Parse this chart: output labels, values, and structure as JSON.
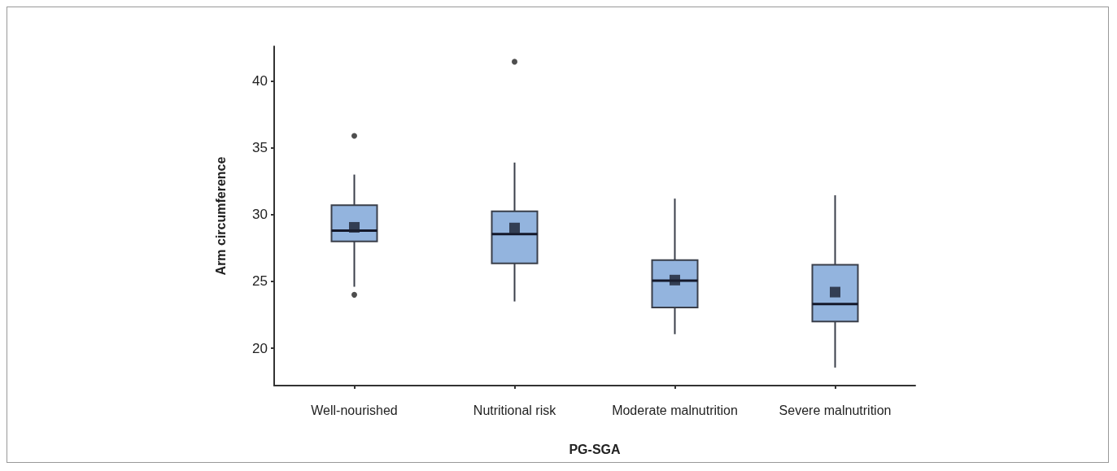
{
  "chart_data": {
    "type": "box",
    "xlabel": "PG-SGA",
    "ylabel": "Arm circumference",
    "categories": [
      "Well-nourished",
      "Nutritional risk",
      "Moderate malnutrition",
      "Severe malnutrition"
    ],
    "color": "#93b4de",
    "marker": "square",
    "boxes": [
      {
        "low": 24.6,
        "q1": 28.0,
        "median": 28.8,
        "q3": 30.7,
        "high": 33.0,
        "mean": 29.05,
        "outliers": [
          35.9,
          24.0
        ]
      },
      {
        "low": 23.5,
        "q1": 26.35,
        "median": 28.55,
        "q3": 30.25,
        "high": 33.9,
        "mean": 29.0,
        "outliers": [
          41.45
        ]
      },
      {
        "low": 21.05,
        "q1": 23.05,
        "median": 25.05,
        "q3": 26.6,
        "high": 31.2,
        "mean": 25.1
      },
      {
        "low": 18.55,
        "q1": 22.0,
        "median": 23.3,
        "q3": 26.25,
        "high": 31.45,
        "mean": 24.2
      }
    ],
    "ylim": [
      17.2,
      42.6
    ],
    "yticks": [
      20,
      25,
      30,
      35,
      40
    ],
    "grid": false
  }
}
